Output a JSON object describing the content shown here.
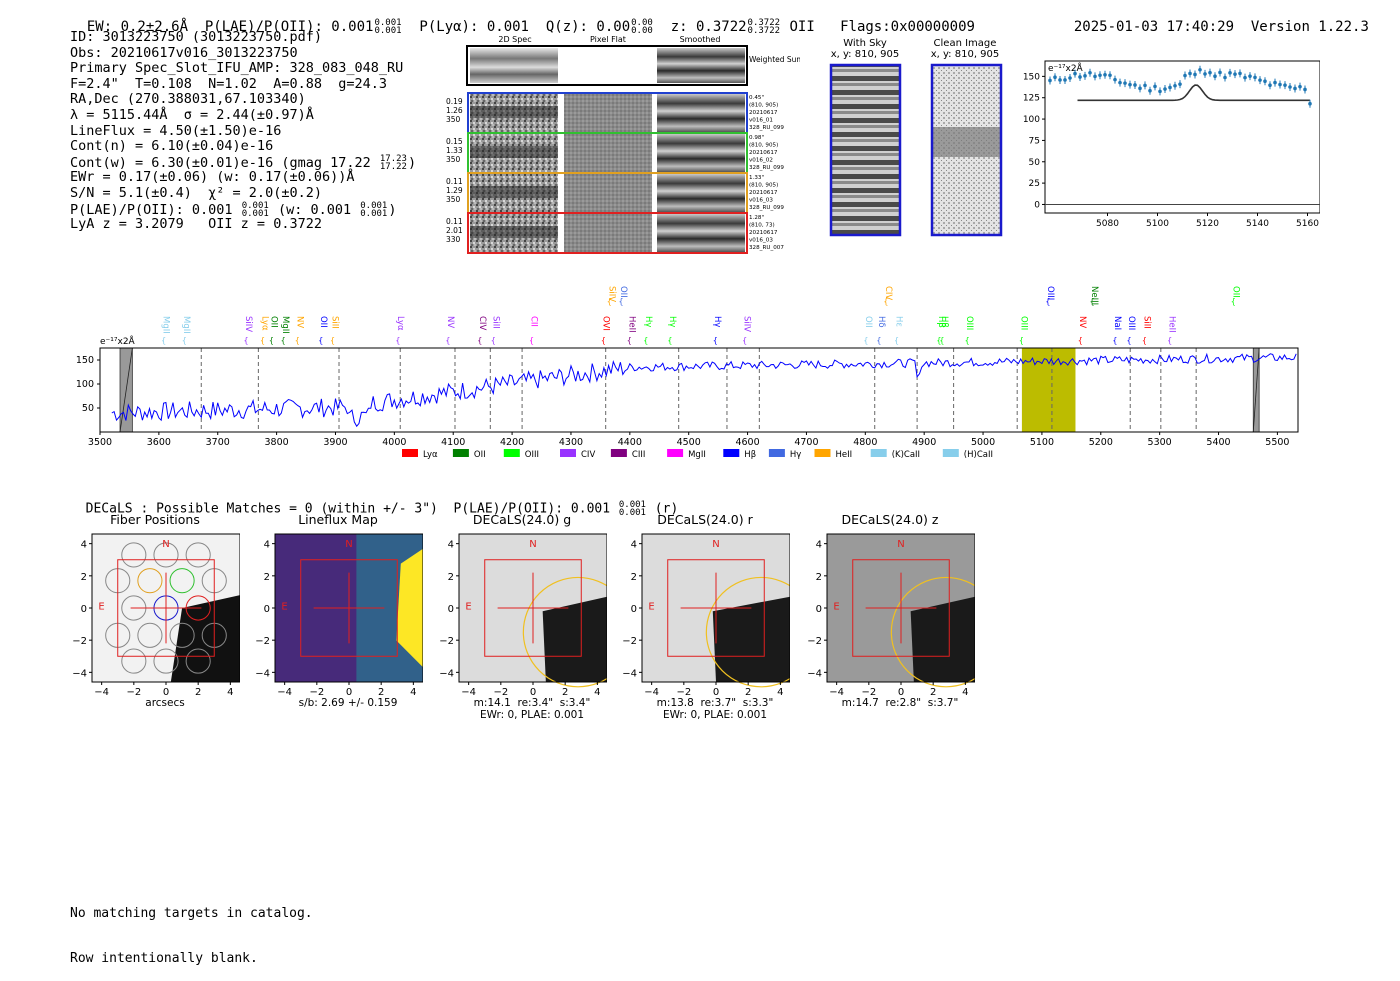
{
  "header": {
    "ew": "EW: 0.2±2.6Å",
    "plae_label": "P(LAE)/P(OII): 0.001",
    "plae_hi": "0.001",
    "plae_lo": "0.001",
    "plya": "P(Lyα): 0.001",
    "qz_label": "Q(z): 0.00",
    "qz_hi": "0.00",
    "qz_lo": "0.00",
    "z_label": "z: 0.3722",
    "z_hi": "0.3722",
    "z_lo": "0.3722",
    "z_line": "OII",
    "flags": "Flags:0x00000009",
    "datetime": "2025-01-03 17:40:29",
    "version": "Version 1.22.3"
  },
  "info": {
    "id": "ID: 3013223750 (3013223750.pdf)",
    "obs": "Obs: 20210617v016_3013223750",
    "primary": "Primary Spec_Slot_IFU_AMP: 328_083_048_RU",
    "params": "F=2.4\"  T=0.108  N=1.02  A=0.88  g=24.3",
    "radec": "RA,Dec (270.388031,67.103340)",
    "lambda": "λ = 5115.44Å  σ = 2.44(±0.97)Å",
    "lineflux": "LineFlux = 4.50(±1.50)e-16",
    "contn": "Cont(n) = 6.10(±0.04)e-16",
    "contw": "Cont(w) = 6.30(±0.01)e-16 (gmag 17.22",
    "contw_hi": "17.23",
    "contw_lo": "17.22",
    "contw_end": ")",
    "ewr": "EWr = 0.17(±0.06) (w: 0.17(±0.06))Å",
    "sn": "S/N = 5.1(±0.4)  χ² = 2.0(±0.2)",
    "plae": "P(LAE)/P(OII): 0.001",
    "plae_hi": "0.001",
    "plae_lo": "0.001",
    "plae_w": "(w: 0.001",
    "plae_w_hi": "0.001",
    "plae_w_lo": "0.001",
    "plae_w_end": ")",
    "lyaz": "LyA z = 3.2079   OII z = 0.3722"
  },
  "cutouts": {
    "col_2d": "2D Spec",
    "col_flat": "Pixel Flat",
    "col_smooth": "Smoothed",
    "weighted": "Weighted Sum",
    "rows": [
      {
        "left": [
          "0.19",
          "1.26",
          "350"
        ],
        "right": [
          "0.45\"",
          "(810, 905)",
          "20210617",
          "v016_01",
          "328_RU_099"
        ],
        "color": "#2040d0"
      },
      {
        "left": [
          "0.15",
          "1.33",
          "350"
        ],
        "right": [
          "0.98\"",
          "(810, 905)",
          "20210617",
          "v016_02",
          "328_RU_099"
        ],
        "color": "#30c030"
      },
      {
        "left": [
          "0.11",
          "1.29",
          "350"
        ],
        "right": [
          "1.33\"",
          "(810, 905)",
          "20210617",
          "v016_03",
          "328_RU_099"
        ],
        "color": "#e0a020"
      },
      {
        "left": [
          "0.11",
          "2.01",
          "330"
        ],
        "right": [
          "1.28\"",
          "(810, 73)",
          "20210617",
          "v016_03",
          "328_RU_007"
        ],
        "color": "#e02020"
      }
    ]
  },
  "sky": {
    "with_sky": "With Sky",
    "with_sky_xy": "x, y: 810, 905",
    "clean": "Clean Image",
    "clean_xy": "x, y: 810, 905"
  },
  "zoom_chart": {
    "type": "scatter",
    "ylabel": "e⁻¹⁷x2Å",
    "x_ticks": [
      "5080",
      "5100",
      "5120",
      "5140",
      "5160"
    ],
    "y_ticks": [
      "0",
      "25",
      "50",
      "75",
      "100",
      "125",
      "150"
    ],
    "xlim": [
      5055,
      5165
    ],
    "ylim": [
      -10,
      168
    ]
  },
  "spectrum": {
    "unit": "e⁻¹⁷x2Å",
    "x_ticks": [
      "3500",
      "3600",
      "3700",
      "3800",
      "3900",
      "4000",
      "4100",
      "4200",
      "4300",
      "4400",
      "4500",
      "4600",
      "4700",
      "4800",
      "4900",
      "5000",
      "5100",
      "5200",
      "5300",
      "5400",
      "5500"
    ],
    "y_ticks": [
      "50",
      "100",
      "150"
    ],
    "legend": [
      {
        "label": "Lyα",
        "color": "#ff0000"
      },
      {
        "label": "OII",
        "color": "#008000"
      },
      {
        "label": "OIII",
        "color": "#00ff00"
      },
      {
        "label": "CIV",
        "color": "#9933ff"
      },
      {
        "label": "CIII",
        "color": "#800080"
      },
      {
        "label": "MgII",
        "color": "#ff00ff"
      },
      {
        "label": "Hβ",
        "color": "#0000ff"
      },
      {
        "label": "Hγ",
        "color": "#4169e1"
      },
      {
        "label": "HeII",
        "color": "#ffa500"
      },
      {
        "label": "(K)CaII",
        "color": "#87ceeb"
      },
      {
        "label": "(H)CaII",
        "color": "#87ceeb"
      }
    ],
    "lines": [
      {
        "label": "MgII",
        "color": "#87ceeb",
        "row": 1
      },
      {
        "label": "MgII",
        "color": "#87ceeb",
        "row": 1
      },
      {
        "label": "SiIV",
        "color": "#9933ff",
        "row": 1
      },
      {
        "label": "Lyα",
        "color": "#ffa500",
        "row": 1
      },
      {
        "label": "OII",
        "color": "#008000",
        "row": 1
      },
      {
        "label": "MgII",
        "color": "#008000",
        "row": 1
      },
      {
        "label": "NV",
        "color": "#ffa500",
        "row": 1
      },
      {
        "label": "OII",
        "color": "#0000ff",
        "row": 1
      },
      {
        "label": "SiII",
        "color": "#ffa500",
        "row": 1
      },
      {
        "label": "Lyα",
        "color": "#9933ff",
        "row": 1
      },
      {
        "label": "NV",
        "color": "#9933ff",
        "row": 1
      },
      {
        "label": "CIV",
        "color": "#800080",
        "row": 1
      },
      {
        "label": "SiII",
        "color": "#9933ff",
        "row": 1
      },
      {
        "label": "CII",
        "color": "#ff00ff",
        "row": 1
      },
      {
        "label": "OVI",
        "color": "#ff0000",
        "row": 1
      },
      {
        "label": "HeII",
        "color": "#800080",
        "row": 1
      },
      {
        "label": "Hγ",
        "color": "#00ff00",
        "row": 1
      },
      {
        "label": "Hγ",
        "color": "#00ff00",
        "row": 1
      },
      {
        "label": "Hγ",
        "color": "#0000ff",
        "row": 1
      },
      {
        "label": "SiIV",
        "color": "#9933ff",
        "row": 1
      },
      {
        "label": "OII",
        "color": "#87ceeb",
        "row": 1
      },
      {
        "label": "Hδ",
        "color": "#4169e1",
        "row": 1
      },
      {
        "label": "Hε",
        "color": "#87ceeb",
        "row": 1
      },
      {
        "label": "Hβ",
        "color": "#00ff00",
        "row": 1
      },
      {
        "label": "Hβ",
        "color": "#00ff00",
        "row": 1
      },
      {
        "label": "OIII",
        "color": "#00ff00",
        "row": 1
      },
      {
        "label": "OIII",
        "color": "#00ff00",
        "row": 1
      },
      {
        "label": "NV",
        "color": "#ff0000",
        "row": 1
      },
      {
        "label": "NaI",
        "color": "#0000ff",
        "row": 1
      },
      {
        "label": "OIII",
        "color": "#0000ff",
        "row": 1
      },
      {
        "label": "SiII",
        "color": "#ff0000",
        "row": 1
      },
      {
        "label": "HeII",
        "color": "#9933ff",
        "row": 1
      },
      {
        "label": "OII",
        "color": "#00ff00",
        "row": 0
      },
      {
        "label": "SiIV",
        "color": "#ffa500",
        "row": 0
      },
      {
        "label": "OII",
        "color": "#4169e1",
        "row": 0
      },
      {
        "label": "CIV",
        "color": "#ffa500",
        "row": 0
      },
      {
        "label": "OIII",
        "color": "#0000ff",
        "row": 0
      },
      {
        "label": "NeIII",
        "color": "#008000",
        "row": 0
      }
    ]
  },
  "decals": {
    "summary": "DECaLS : Possible Matches = 0 (within +/- 3\")  P(LAE)/P(OII): 0.001",
    "summary_hi": "0.001",
    "summary_lo": "0.001",
    "summary_end": "(r)",
    "panels": [
      {
        "title": "Fiber Positions",
        "caption": "arcsecs",
        "caption2": ""
      },
      {
        "title": "Lineflux Map",
        "caption": "s/b: 2.69 +/- 0.159",
        "caption2": ""
      },
      {
        "title": "DECaLS(24.0) g",
        "caption": "m:14.1  re:3.4\"  s:3.4\"",
        "caption2": "EWr: 0, PLAE: 0.001"
      },
      {
        "title": "DECaLS(24.0) r",
        "caption": "m:13.8  re:3.7\"  s:3.3\"",
        "caption2": "EWr: 0, PLAE: 0.001"
      },
      {
        "title": "DECaLS(24.0) z",
        "caption": "m:14.7  re:2.8\"  s:3.7\"",
        "caption2": ""
      }
    ],
    "ticks": [
      "−4",
      "−2",
      "0",
      "2",
      "4"
    ],
    "compass_n": "N",
    "compass_e": "E"
  },
  "footer": {
    "line1": "No matching targets in catalog.",
    "line2": "Row intentionally blank."
  },
  "colors": {
    "spectrum": "#0000ff",
    "highlight": "#bcbc00",
    "box": "#e02020",
    "errorbar": "#1f77b4",
    "circle": "#f0c020"
  }
}
